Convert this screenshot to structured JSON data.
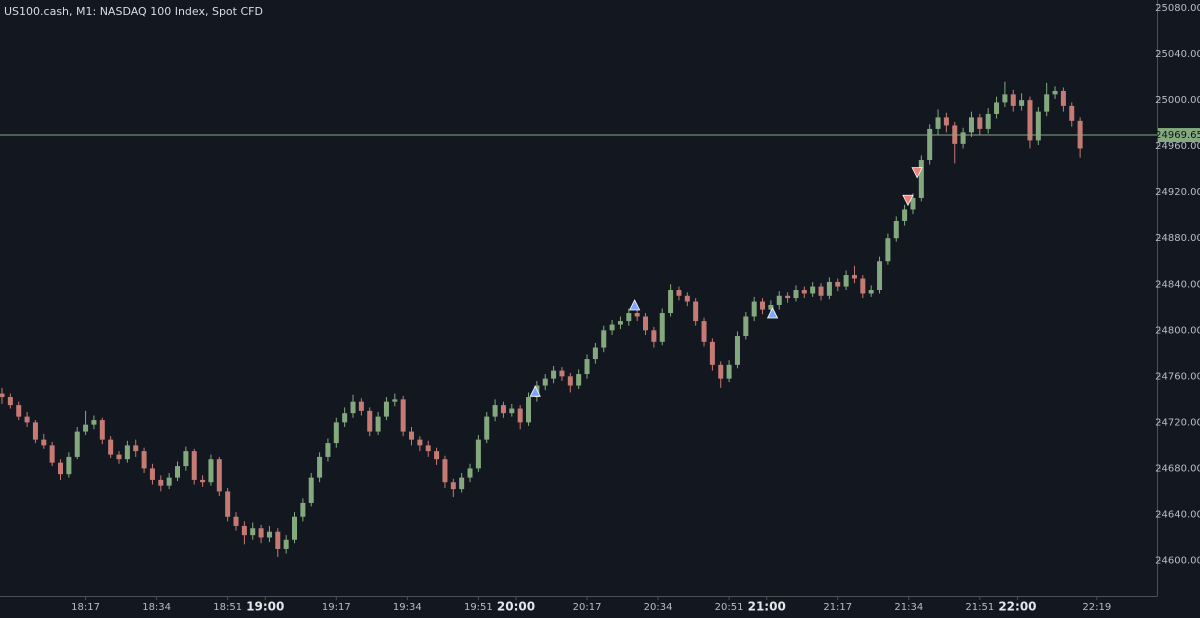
{
  "chart_data": {
    "type": "candlestick",
    "title": "US100.cash, M1: NASDAQ 100 Index, Spot CFD",
    "up_color": "#84a97f",
    "down_color": "#c57a74",
    "background": "#121720",
    "ylim": [
      24570,
      25087
    ],
    "xlim": [
      -0.24,
      138.2
    ],
    "yticks": [
      {
        "value": 24600,
        "label": "24600.00"
      },
      {
        "value": 24640,
        "label": "24640.00"
      },
      {
        "value": 24680,
        "label": "24680.00"
      },
      {
        "value": 24720,
        "label": "24720.00"
      },
      {
        "value": 24760,
        "label": "24760.00"
      },
      {
        "value": 24800,
        "label": "24800.00"
      },
      {
        "value": 24840,
        "label": "24840.00"
      },
      {
        "value": 24880,
        "label": "24880.00"
      },
      {
        "value": 24920,
        "label": "24920.00"
      },
      {
        "value": 24960,
        "label": "24960.00"
      },
      {
        "value": 25000,
        "label": "25000.00"
      },
      {
        "value": 25040,
        "label": "25040.00"
      },
      {
        "value": 25080,
        "label": "25080.00"
      }
    ],
    "xticks": [
      {
        "value": 10,
        "label": "18:17"
      },
      {
        "value": 18.5,
        "label": "18:34"
      },
      {
        "value": 27,
        "label": "18:51"
      },
      {
        "value": 31.5,
        "label": "19:00"
      },
      {
        "value": 40,
        "label": "19:17"
      },
      {
        "value": 48.5,
        "label": "19:34"
      },
      {
        "value": 57,
        "label": "19:51"
      },
      {
        "value": 61.5,
        "label": "20:00"
      },
      {
        "value": 70,
        "label": "20:17"
      },
      {
        "value": 78.5,
        "label": "20:34"
      },
      {
        "value": 87,
        "label": "20:51"
      },
      {
        "value": 91.5,
        "label": "21:00"
      },
      {
        "value": 100,
        "label": "21:17"
      },
      {
        "value": 108.5,
        "label": "21:34"
      },
      {
        "value": 117,
        "label": "21:51"
      },
      {
        "value": 121.5,
        "label": "22:00"
      },
      {
        "value": 131,
        "label": "22:19"
      }
    ],
    "last_price": 24969.65,
    "last_price_color": "#84a97f",
    "markers": [
      {
        "shape": "triangle-up",
        "color": "#7ea6ff",
        "x": [
          63.8,
          75.7,
          92.2
        ],
        "y": [
          24747,
          24822,
          24815
        ]
      },
      {
        "shape": "triangle-down",
        "color": "#e8837a",
        "x": [
          108.4,
          109.5
        ],
        "y": [
          24913,
          24937
        ]
      }
    ],
    "ohlc": [
      [
        24745,
        24750,
        24736,
        24742
      ],
      [
        24742,
        24745,
        24732,
        24735
      ],
      [
        24735,
        24738,
        24722,
        24725
      ],
      [
        24725,
        24729,
        24716,
        24720
      ],
      [
        24720,
        24722,
        24702,
        24705
      ],
      [
        24705,
        24710,
        24697,
        24700
      ],
      [
        24700,
        24703,
        24682,
        24685
      ],
      [
        24685,
        24688,
        24670,
        24675
      ],
      [
        24675,
        24694,
        24672,
        24690
      ],
      [
        24690,
        24716,
        24688,
        24712
      ],
      [
        24712,
        24730,
        24709,
        24718
      ],
      [
        24718,
        24726,
        24714,
        24722
      ],
      [
        24722,
        24724,
        24701,
        24705
      ],
      [
        24705,
        24708,
        24689,
        24692
      ],
      [
        24692,
        24695,
        24684,
        24688
      ],
      [
        24688,
        24704,
        24685,
        24700
      ],
      [
        24700,
        24705,
        24690,
        24695
      ],
      [
        24695,
        24698,
        24676,
        24680
      ],
      [
        24680,
        24684,
        24666,
        24670
      ],
      [
        24670,
        24674,
        24660,
        24665
      ],
      [
        24665,
        24676,
        24662,
        24672
      ],
      [
        24672,
        24686,
        24669,
        24682
      ],
      [
        24682,
        24699,
        24678,
        24695
      ],
      [
        24695,
        24697,
        24666,
        24670
      ],
      [
        24670,
        24674,
        24664,
        24668
      ],
      [
        24668,
        24692,
        24665,
        24688
      ],
      [
        24688,
        24690,
        24656,
        24660
      ],
      [
        24660,
        24663,
        24634,
        24638
      ],
      [
        24638,
        24642,
        24626,
        24630
      ],
      [
        24630,
        24634,
        24614,
        24622
      ],
      [
        24622,
        24633,
        24618,
        24628
      ],
      [
        24628,
        24631,
        24615,
        24620
      ],
      [
        24620,
        24630,
        24616,
        24625
      ],
      [
        24625,
        24628,
        24603,
        24610
      ],
      [
        24610,
        24622,
        24606,
        24618
      ],
      [
        24618,
        24642,
        24615,
        24638
      ],
      [
        24638,
        24654,
        24634,
        24650
      ],
      [
        24650,
        24676,
        24647,
        24672
      ],
      [
        24672,
        24694,
        24668,
        24690
      ],
      [
        24690,
        24706,
        24686,
        24702
      ],
      [
        24702,
        24724,
        24698,
        24720
      ],
      [
        24720,
        24733,
        24716,
        24728
      ],
      [
        24728,
        24744,
        24724,
        24738
      ],
      [
        24738,
        24741,
        24726,
        24730
      ],
      [
        24730,
        24733,
        24708,
        24712
      ],
      [
        24712,
        24729,
        24709,
        24725
      ],
      [
        24725,
        24742,
        24722,
        24738
      ],
      [
        24738,
        24745,
        24734,
        24740
      ],
      [
        24740,
        24743,
        24708,
        24712
      ],
      [
        24712,
        24716,
        24700,
        24705
      ],
      [
        24705,
        24708,
        24695,
        24700
      ],
      [
        24700,
        24704,
        24690,
        24695
      ],
      [
        24695,
        24698,
        24683,
        24688
      ],
      [
        24688,
        24691,
        24663,
        24668
      ],
      [
        24668,
        24671,
        24655,
        24662
      ],
      [
        24662,
        24676,
        24659,
        24672
      ],
      [
        24672,
        24684,
        24668,
        24680
      ],
      [
        24680,
        24709,
        24677,
        24705
      ],
      [
        24705,
        24729,
        24702,
        24725
      ],
      [
        24725,
        24740,
        24721,
        24735
      ],
      [
        24735,
        24738,
        24724,
        24728
      ],
      [
        24728,
        24736,
        24725,
        24732
      ],
      [
        24732,
        24735,
        24714,
        24720
      ],
      [
        24720,
        24746,
        24717,
        24742
      ],
      [
        24742,
        24756,
        24738,
        24752
      ],
      [
        24752,
        24762,
        24748,
        24758
      ],
      [
        24758,
        24769,
        24754,
        24765
      ],
      [
        24765,
        24768,
        24756,
        24760
      ],
      [
        24760,
        24763,
        24746,
        24752
      ],
      [
        24752,
        24766,
        24749,
        24762
      ],
      [
        24762,
        24779,
        24758,
        24775
      ],
      [
        24775,
        24789,
        24771,
        24785
      ],
      [
        24785,
        24804,
        24781,
        24800
      ],
      [
        24800,
        24809,
        24796,
        24805
      ],
      [
        24805,
        24812,
        24801,
        24808
      ],
      [
        24808,
        24819,
        24804,
        24815
      ],
      [
        24815,
        24818,
        24808,
        24812
      ],
      [
        24812,
        24815,
        24796,
        24800
      ],
      [
        24800,
        24803,
        24785,
        24790
      ],
      [
        24790,
        24819,
        24787,
        24815
      ],
      [
        24815,
        24840,
        24812,
        24835
      ],
      [
        24835,
        24838,
        24826,
        24830
      ],
      [
        24830,
        24833,
        24821,
        24825
      ],
      [
        24825,
        24828,
        24804,
        24808
      ],
      [
        24808,
        24811,
        24786,
        24790
      ],
      [
        24790,
        24793,
        24765,
        24770
      ],
      [
        24770,
        24773,
        24750,
        24758
      ],
      [
        24758,
        24774,
        24755,
        24770
      ],
      [
        24770,
        24799,
        24767,
        24795
      ],
      [
        24795,
        24816,
        24792,
        24812
      ],
      [
        24812,
        24829,
        24808,
        24825
      ],
      [
        24825,
        24828,
        24814,
        24818
      ],
      [
        24818,
        24826,
        24815,
        24822
      ],
      [
        24822,
        24834,
        24818,
        24830
      ],
      [
        24830,
        24833,
        24824,
        24828
      ],
      [
        24828,
        24839,
        24825,
        24835
      ],
      [
        24835,
        24838,
        24828,
        24832
      ],
      [
        24832,
        24842,
        24829,
        24838
      ],
      [
        24838,
        24841,
        24826,
        24830
      ],
      [
        24830,
        24846,
        24827,
        24842
      ],
      [
        24842,
        24845,
        24834,
        24838
      ],
      [
        24838,
        24852,
        24835,
        24848
      ],
      [
        24848,
        24856,
        24841,
        24845
      ],
      [
        24845,
        24848,
        24828,
        24832
      ],
      [
        24832,
        24839,
        24829,
        24835
      ],
      [
        24835,
        24864,
        24832,
        24860
      ],
      [
        24860,
        24884,
        24857,
        24880
      ],
      [
        24880,
        24899,
        24877,
        24895
      ],
      [
        24895,
        24909,
        24891,
        24905
      ],
      [
        24905,
        24919,
        24901,
        24915
      ],
      [
        24915,
        24952,
        24912,
        24948
      ],
      [
        24948,
        24979,
        24944,
        24975
      ],
      [
        24975,
        24992,
        24970,
        24985
      ],
      [
        24985,
        24989,
        24972,
        24978
      ],
      [
        24978,
        24981,
        24945,
        24962
      ],
      [
        24962,
        24976,
        24958,
        24972
      ],
      [
        24972,
        24990,
        24968,
        24985
      ],
      [
        24985,
        24988,
        24970,
        24975
      ],
      [
        24975,
        24993,
        24971,
        24988
      ],
      [
        24988,
        25003,
        24984,
        24998
      ],
      [
        24998,
        25016,
        24994,
        25005
      ],
      [
        25005,
        25009,
        24990,
        24995
      ],
      [
        24995,
        25006,
        24991,
        25000
      ],
      [
        25000,
        25003,
        24958,
        24965
      ],
      [
        24965,
        24994,
        24961,
        24990
      ],
      [
        24990,
        25015,
        24986,
        25005
      ],
      [
        25005,
        25012,
        25001,
        25008
      ],
      [
        25008,
        25011,
        24990,
        24995
      ],
      [
        24995,
        24998,
        24977,
        24982
      ],
      [
        24982,
        24985,
        24950,
        24958
      ]
    ]
  }
}
